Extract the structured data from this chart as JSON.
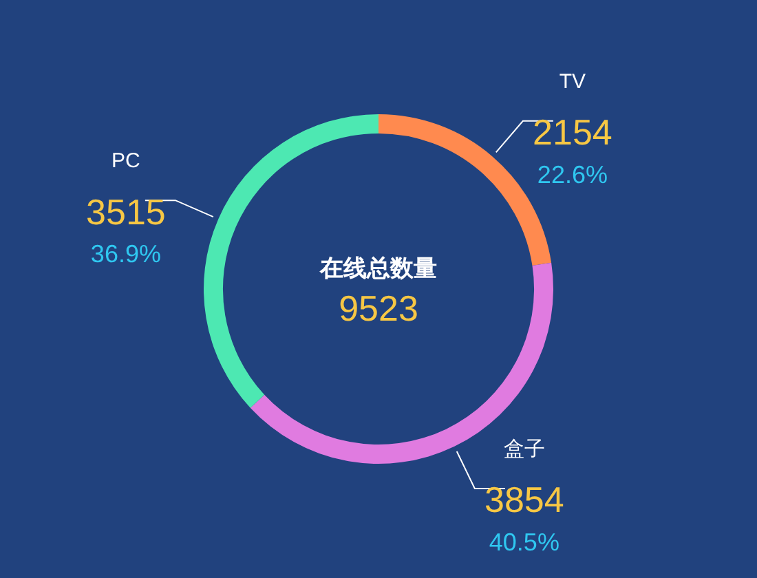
{
  "chart_data": {
    "type": "donut",
    "title": "在线总数量",
    "categories": [
      "TV",
      "盒子",
      "PC"
    ],
    "values": [
      22.6,
      40.5,
      36.9
    ],
    "colors": [
      "#ff8a4f",
      "#e07be0",
      "#4de8b2"
    ],
    "value_labels": [
      "22.6%",
      "40.5%",
      "36.9%"
    ],
    "annotations": [
      "9523",
      {
        "text": "2154",
        "x": "TV"
      },
      {
        "text": "3854",
        "x": "盒子"
      },
      {
        "text": "3515",
        "x": "PC"
      }
    ],
    "legend": false
  }
}
